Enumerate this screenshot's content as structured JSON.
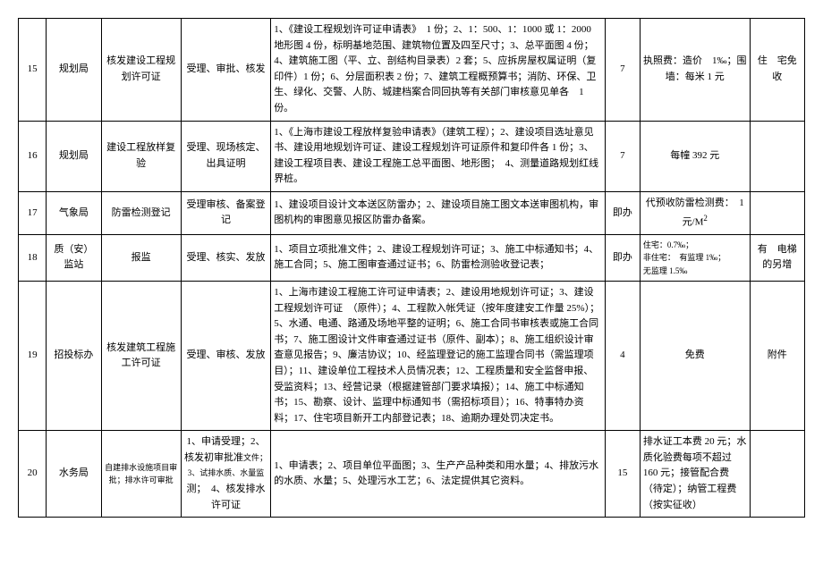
{
  "rows": [
    {
      "num": "15",
      "dept": "规划局",
      "item": "核发建设工程规划许可证",
      "proc": "受理、审批、核发",
      "req": "1、《建设工程规划许可证申请表》　1 份；2、1：500、1：1000 或 1：2000 地形图 4 份，标明基地范围、建筑物位置及四至尺寸；3、总平面图 4 份；4、建筑施工图（平、立、剖结构目录表）2 套；5、应拆房屋权属证明（复印件）1 份；6、分层面积表 2 份；7、建筑工程概预算书；消防、环保、卫生、绿化、交警、人防、城建档案合同回执等有关部门审核意见单各　1 份。",
      "days": "7",
      "fee": "执照费：造价　1‰；围墙：每米 1 元",
      "note": "住　宅免收"
    },
    {
      "num": "16",
      "dept": "规划局",
      "item": "建设工程放样复验",
      "proc": "受理、现场核定、出具证明",
      "req": "1、《上海市建设工程放样复验申请表》（建筑工程）；2、建设项目选址意见书、建设用地规划许可证、建设工程规划许可证原件和复印件各 1 份；3、建设工程项目表、建设工程施工总平面图、地形图；　4、测量道路规划红线界桩。",
      "days": "7",
      "fee": "每幢 392 元",
      "note": ""
    },
    {
      "num": "17",
      "dept": "气象局",
      "item": "防雷检测登记",
      "proc": "受理审核、备案登记",
      "req": "1、建设项目设计文本送区防雷办；2、建设项目施工图文本送审图机构，审图机构的审图意见报区防雷办备案。",
      "days": "即办",
      "fee": "代预收防雷检测费：　1 元/M²",
      "note": ""
    },
    {
      "num": "18",
      "dept": "质（安）监站",
      "item": "报监",
      "proc": "受理、核实、发放",
      "req": "1、项目立项批准文件；2、建设工程规划许可证；3、施工中标通知书；4、施工合同；5、施工图审查通过证书；6、防雷检测验收登记表；",
      "days": "即办",
      "fee_lines": [
        "住宅：0.7‰；",
        "非住宅：　有监理 1‰；",
        "无监理  1.5‰"
      ],
      "note": "有　电梯　的另增"
    },
    {
      "num": "19",
      "dept": "招投标办",
      "item": "核发建筑工程施工许可证",
      "proc": "受理、审核、发放",
      "req": "1、上海市建设工程施工许可证申请表；2、建设用地规划许可证；3、建设工程规划许可证　（原件）；4、工程款入帐凭证（按年度建安工作量 25%）；5、水通、电通、路通及场地平整的证明；6、施工合同书审核表或施工合同书；7、施工图设计文件审查通过证书（原件、副本）；8、施工组织设计审查意见报告；9、廉洁协议；10、经监理登记的施工监理合同书（需监理项目）；11、建设单位工程技术人员情况表；12、工程质量和安全监督申报、受监资料；13、经营记录（根据建管部门要求填报）；14、施工中标通知书；15、勘察、设计、监理中标通知书（需招标项目）；16、特事特办资料；17、住宅项目新开工内部登记表；18、逾期办理处罚决定书。",
      "days": "4",
      "fee": "免费",
      "note": "附件"
    },
    {
      "num": "20",
      "dept": "水务局",
      "item": "自建排水设施项目审批；排水许可审批",
      "proc": "1、申请受理；2、核发初审批准文件；3、试排水质、水量监测；　4、核发排水许可证",
      "req": "1、申请表；2、项目单位平面图；3、生产产品种类和用水量；4、排放污水的水质、水量；5、处理污水工艺；6、法定提供其它资料。",
      "days": "15",
      "fee": "排水证工本费 20 元；水质化验费每项不超过 160 元；接管配合费（待定）；纳管工程费（按实征收）",
      "note": ""
    }
  ]
}
